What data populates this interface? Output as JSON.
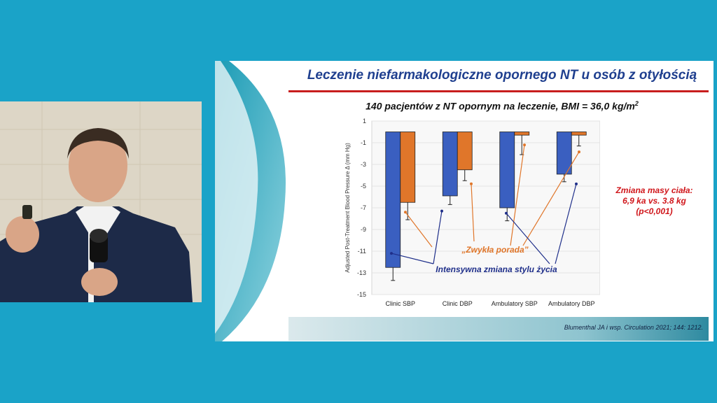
{
  "slide": {
    "title": "Leczenie niefarmakologiczne opornego NT u osób z otyłością",
    "subtitle": "140 pacjentów z NT opornym na leczenie, BMI = 36,0 kg/m",
    "subtitle_sup": "2",
    "side_note_line1": "Zmiana masy ciała:",
    "side_note_line2": "6,9 ka vs. 3.8 kg",
    "side_note_line3": "(p<0,001)",
    "citation": "Blumenthal JA i wsp. Circulation 2021; 144: 1212."
  },
  "chart_data": {
    "type": "bar",
    "categories": [
      "Clinic SBP",
      "Clinic DBP",
      "Ambulatory SBP",
      "Ambulatory DBP"
    ],
    "series": [
      {
        "values": [
          -12.5,
          -5.9,
          -7.0,
          -3.9
        ],
        "errors": [
          1.2,
          0.8,
          1.2,
          0.7
        ],
        "color": "#3a5fc0"
      },
      {
        "values": [
          -6.5,
          -3.5,
          -0.3,
          -0.3
        ],
        "errors": [
          1.6,
          1.0,
          1.8,
          1.0
        ],
        "color": "#e0762a"
      }
    ],
    "ylabel": "Adjusted Post-Treatment Blood Pressure Δ (mm Hg)",
    "ylim": [
      -15,
      1
    ],
    "yticks": [
      "1",
      "-1",
      "-3",
      "-5",
      "-7",
      "-9",
      "-11",
      "-13",
      "-15"
    ],
    "annotations": [
      {
        "text": "„Zwykła porada”",
        "color": "#e0762a"
      },
      {
        "text": "Intensywna zmiana stylu życia",
        "color": "#1f2f8a"
      }
    ]
  }
}
